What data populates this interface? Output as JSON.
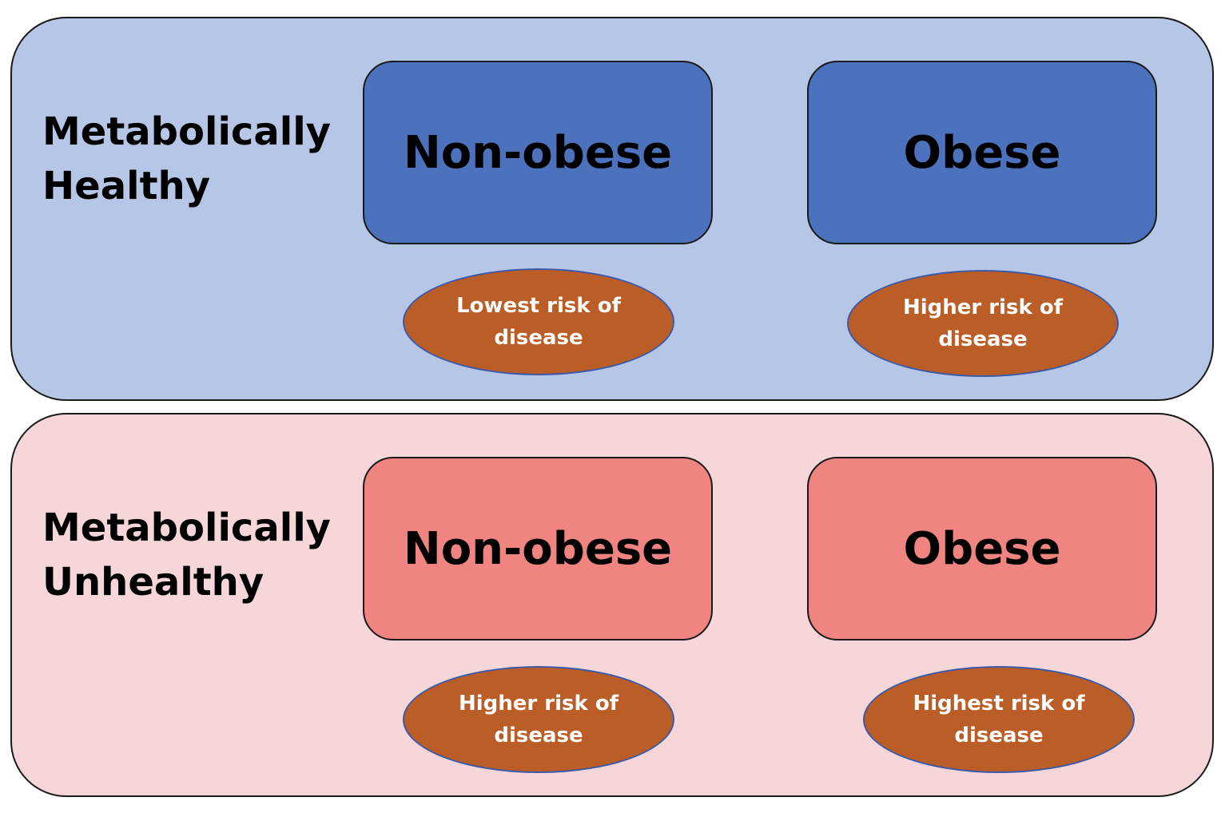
{
  "colors": {
    "healthy_panel": "#b6c6e6",
    "healthy_box": "#4c72be",
    "unhealthy_panel": "#f6d6d8",
    "unhealthy_box": "#ef8480",
    "risk_ellipse": "#bb5d27",
    "risk_text": "#ffffff"
  },
  "rows": [
    {
      "label_lines": [
        "Metabolically",
        "Healthy"
      ],
      "boxes": [
        {
          "label": "Non-obese",
          "risk_lines": [
            "Lowest risk of",
            "disease"
          ]
        },
        {
          "label": "Obese",
          "risk_lines": [
            "Higher risk of",
            "disease"
          ]
        }
      ]
    },
    {
      "label_lines": [
        "Metabolically",
        "Unhealthy"
      ],
      "boxes": [
        {
          "label": "Non-obese",
          "risk_lines": [
            "Higher risk of",
            "disease"
          ]
        },
        {
          "label": "Obese",
          "risk_lines": [
            "Highest risk of",
            "disease"
          ]
        }
      ]
    }
  ]
}
